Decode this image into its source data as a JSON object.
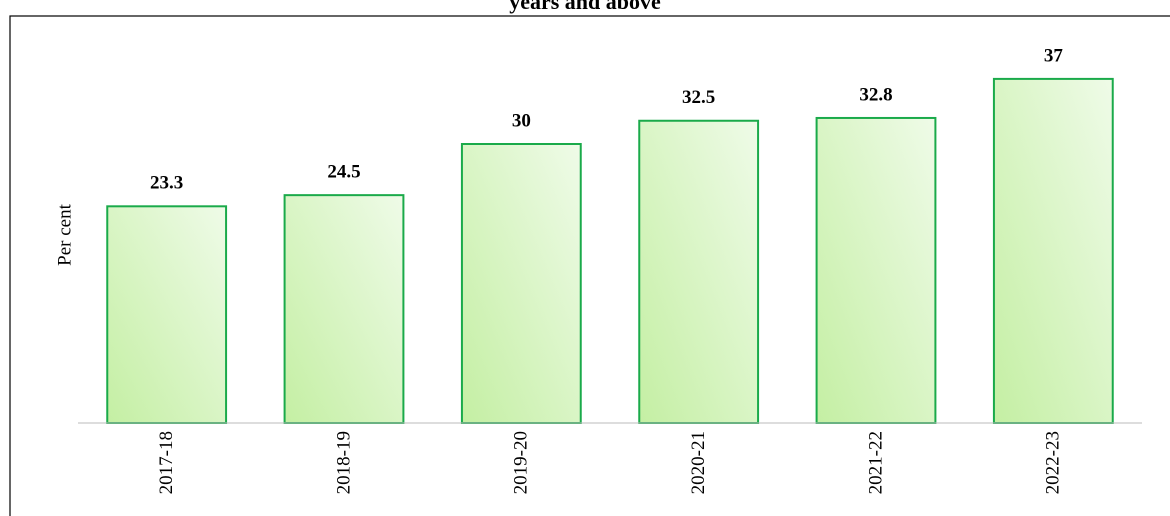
{
  "chart_data": {
    "type": "bar",
    "title": "years and above",
    "ylabel": "Per cent",
    "categories": [
      "2017-18",
      "2018-19",
      "2019-20",
      "2020-21",
      "2021-22",
      "2022-23"
    ],
    "values": [
      23.3,
      24.5,
      30,
      32.5,
      32.8,
      37
    ],
    "color": "#1aaa4a",
    "ylim": [
      0,
      40
    ]
  }
}
